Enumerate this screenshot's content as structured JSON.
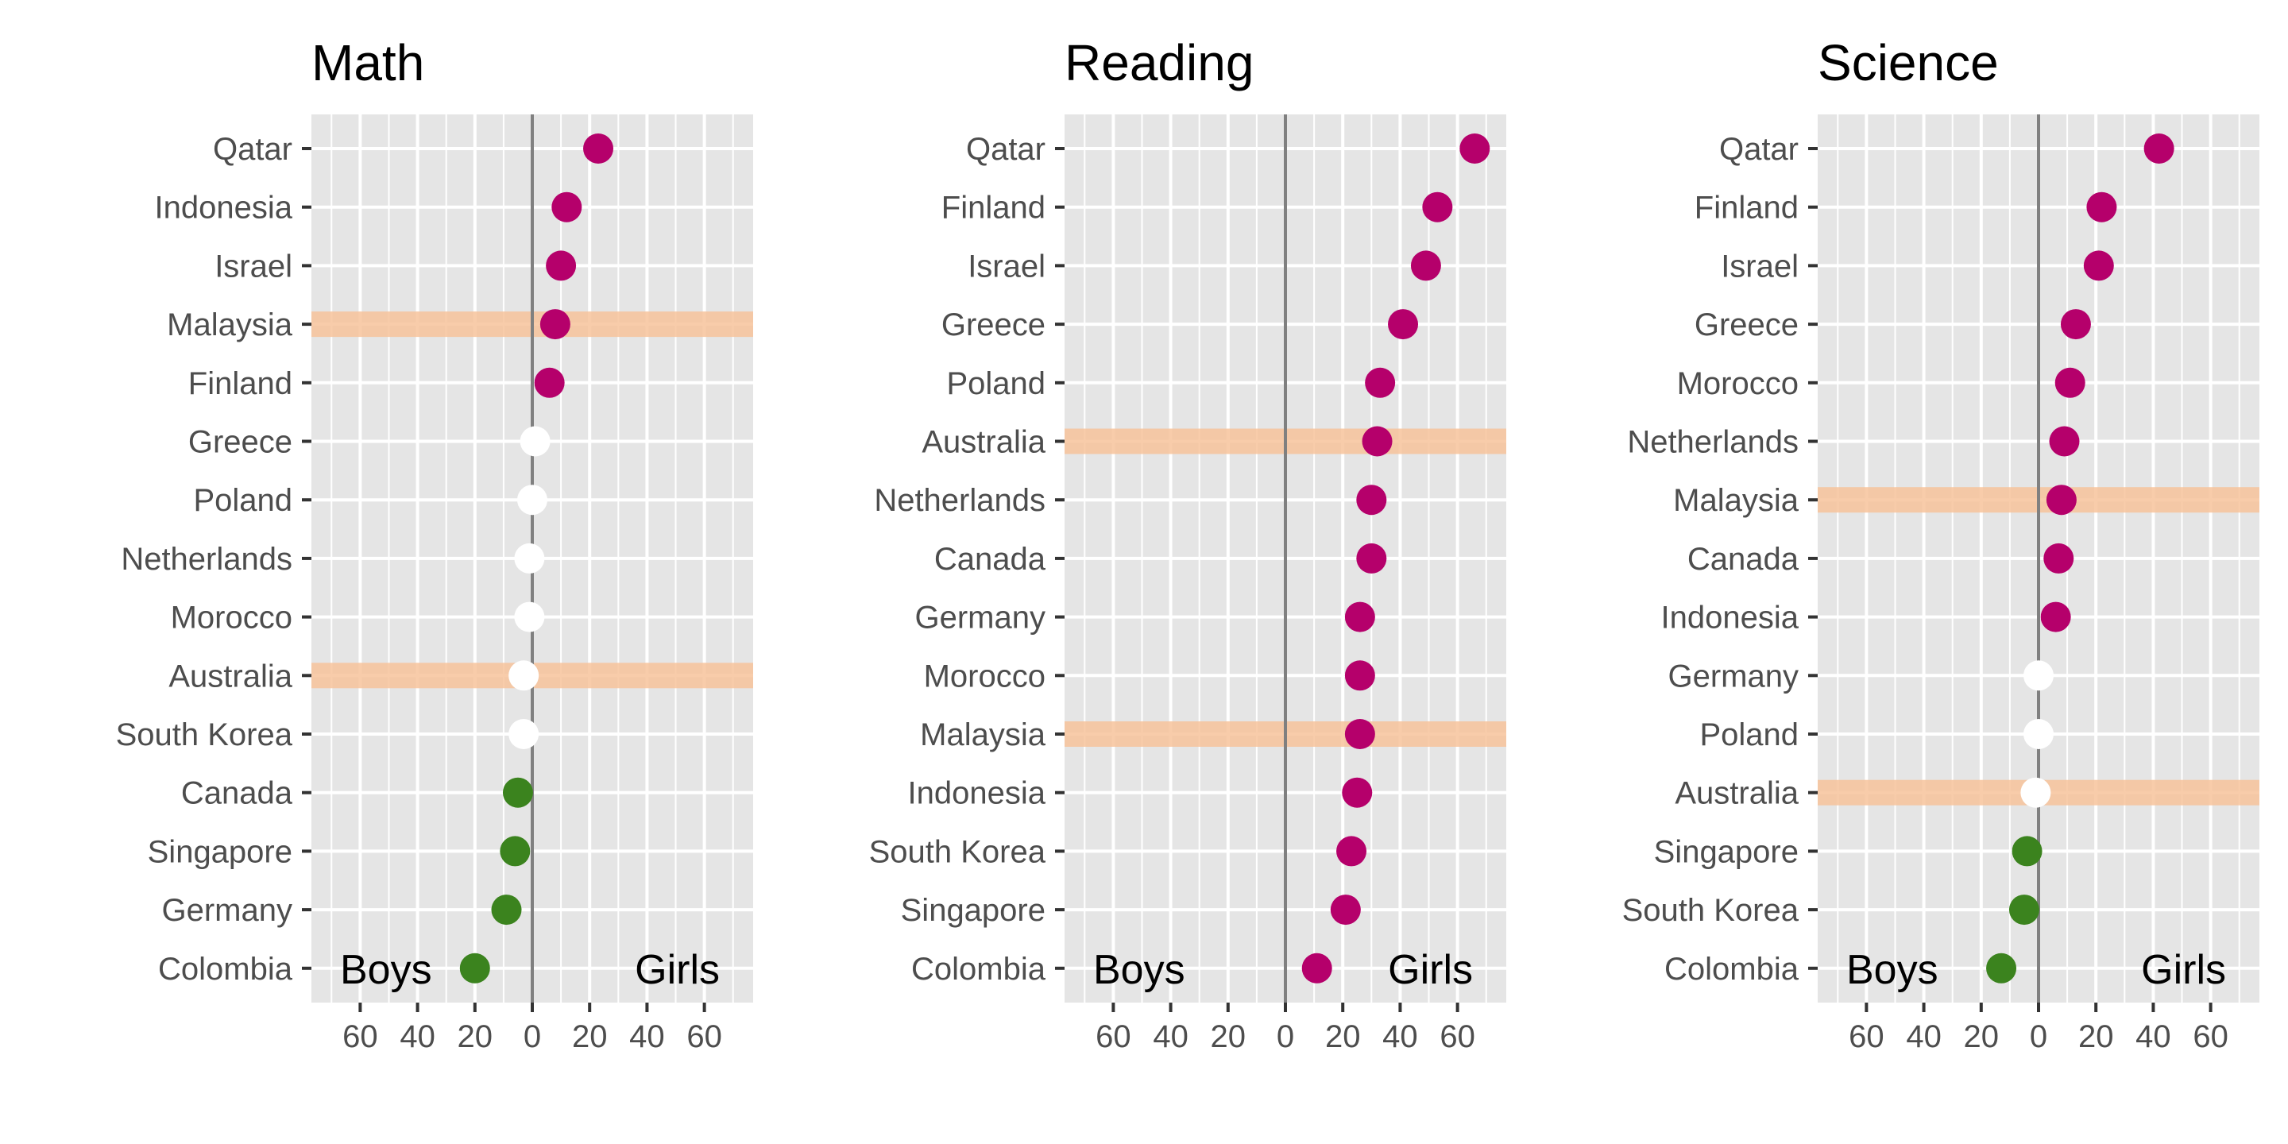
{
  "labels": {
    "boys": "Boys",
    "girls": "Girls"
  },
  "colors": {
    "girls_favored": "#B5006B",
    "boys_favored": "#3B831E",
    "not_significant": "#FFFFFF",
    "highlight_band": "#F7C39B",
    "panel_bg": "#E5E5E5",
    "zero_line": "#808080"
  },
  "chart_data": [
    {
      "type": "scatter",
      "title": "Math",
      "xlabel": "",
      "ylabel": "",
      "xlim": [
        -77,
        77
      ],
      "x_ticks": [
        -60,
        -40,
        -20,
        0,
        20,
        40,
        60
      ],
      "x_tick_labels": [
        "60",
        "40",
        "20",
        "0",
        "20",
        "40",
        "60"
      ],
      "grid": true,
      "highlighted": [
        "Malaysia",
        "Australia"
      ],
      "categories": [
        "Qatar",
        "Indonesia",
        "Israel",
        "Malaysia",
        "Finland",
        "Greece",
        "Poland",
        "Netherlands",
        "Morocco",
        "Australia",
        "South Korea",
        "Canada",
        "Singapore",
        "Germany",
        "Colombia"
      ],
      "values": [
        23,
        12,
        10,
        8,
        6,
        1,
        0,
        -1,
        -1,
        -3,
        -3,
        -5,
        -6,
        -9,
        -20
      ],
      "status": [
        "girls",
        "girls",
        "girls",
        "girls",
        "girls",
        "ns",
        "ns",
        "ns",
        "ns",
        "ns",
        "ns",
        "boys",
        "boys",
        "boys",
        "boys"
      ]
    },
    {
      "type": "scatter",
      "title": "Reading",
      "xlabel": "",
      "ylabel": "",
      "xlim": [
        -77,
        77
      ],
      "x_ticks": [
        -60,
        -40,
        -20,
        0,
        20,
        40,
        60
      ],
      "x_tick_labels": [
        "60",
        "40",
        "20",
        "0",
        "20",
        "40",
        "60"
      ],
      "grid": true,
      "highlighted": [
        "Australia",
        "Malaysia"
      ],
      "categories": [
        "Qatar",
        "Finland",
        "Israel",
        "Greece",
        "Poland",
        "Australia",
        "Netherlands",
        "Canada",
        "Germany",
        "Morocco",
        "Malaysia",
        "Indonesia",
        "South Korea",
        "Singapore",
        "Colombia"
      ],
      "values": [
        66,
        53,
        49,
        41,
        33,
        32,
        30,
        30,
        26,
        26,
        26,
        25,
        23,
        21,
        11
      ],
      "status": [
        "girls",
        "girls",
        "girls",
        "girls",
        "girls",
        "girls",
        "girls",
        "girls",
        "girls",
        "girls",
        "girls",
        "girls",
        "girls",
        "girls",
        "girls"
      ]
    },
    {
      "type": "scatter",
      "title": "Science",
      "xlabel": "",
      "ylabel": "",
      "xlim": [
        -77,
        77
      ],
      "x_ticks": [
        -60,
        -40,
        -20,
        0,
        20,
        40,
        60
      ],
      "x_tick_labels": [
        "60",
        "40",
        "20",
        "0",
        "20",
        "40",
        "60"
      ],
      "grid": true,
      "highlighted": [
        "Malaysia",
        "Australia"
      ],
      "categories": [
        "Qatar",
        "Finland",
        "Israel",
        "Greece",
        "Morocco",
        "Netherlands",
        "Malaysia",
        "Canada",
        "Indonesia",
        "Germany",
        "Poland",
        "Australia",
        "Singapore",
        "South Korea",
        "Colombia"
      ],
      "values": [
        42,
        22,
        21,
        13,
        11,
        9,
        8,
        7,
        6,
        0,
        0,
        -1,
        -4,
        -5,
        -13
      ],
      "status": [
        "girls",
        "girls",
        "girls",
        "girls",
        "girls",
        "girls",
        "girls",
        "girls",
        "girls",
        "ns",
        "ns",
        "ns",
        "boys",
        "boys",
        "boys"
      ]
    }
  ]
}
